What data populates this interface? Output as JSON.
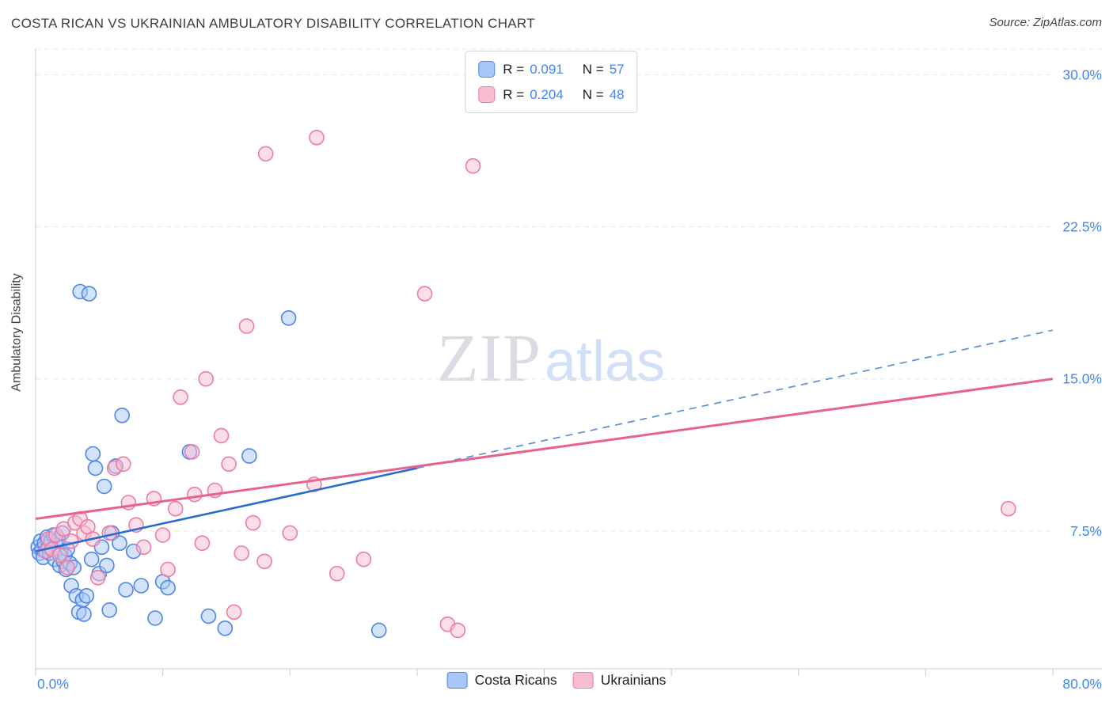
{
  "header": {
    "title": "COSTA RICAN VS UKRAINIAN AMBULATORY DISABILITY CORRELATION CHART",
    "source": "Source: ZipAtlas.com"
  },
  "watermark": {
    "part1": "ZIP",
    "part2": "atlas"
  },
  "legend_box": {
    "rows": [
      {
        "series": "Costa Ricans",
        "r_label": "R =",
        "r_value": "0.091",
        "n_label": "N =",
        "n_value": "57"
      },
      {
        "series": "Ukrainians",
        "r_label": "R =",
        "r_value": "0.204",
        "n_label": "N =",
        "n_value": "48"
      }
    ]
  },
  "bottom_legend": {
    "items": [
      {
        "label": "Costa Ricans"
      },
      {
        "label": "Ukrainians"
      }
    ]
  },
  "colors": {
    "axis_tick_label": "#4285f4",
    "gridline": "#e4e7eb",
    "title_text": "#3c4043",
    "costa_ricans_fill": "#a7c7f9",
    "costa_ricans_stroke": "#4c86e8",
    "costa_ricans_trend": "#2a6bd2",
    "ukrainians_fill": "#f8bdd2",
    "ukrainians_stroke": "#ef7ba3",
    "ukrainians_trend": "#e8638c"
  },
  "chart_data": {
    "type": "scatter",
    "title": "COSTA RICAN VS UKRAINIAN AMBULATORY DISABILITY CORRELATION CHART",
    "ylabel": "Ambulatory Disability",
    "xlim": [
      0,
      80
    ],
    "ylim": [
      0,
      31.3
    ],
    "x_unit": "%",
    "y_unit": "%",
    "xlabel_left": "0.0%",
    "xlabel_right": "80.0%",
    "xticks": [
      0,
      10,
      20,
      30,
      40,
      50,
      60,
      70,
      80
    ],
    "tick_color": "#4285f4",
    "grid": true,
    "legend_position": "top-center",
    "ygrid": [
      {
        "value": 7.5,
        "label": "7.5%"
      },
      {
        "value": 15,
        "label": "15.0%"
      },
      {
        "value": 22.5,
        "label": "22.5%"
      },
      {
        "value": 30,
        "label": "30.0%"
      }
    ],
    "series": [
      {
        "name": "Costa Ricans",
        "R": 0.091,
        "N": 57,
        "fill": "#a7c7f9",
        "stroke": "#4c86e8",
        "points": [
          [
            0.2,
            6.7
          ],
          [
            0.3,
            6.4
          ],
          [
            0.4,
            7.0
          ],
          [
            0.5,
            6.6
          ],
          [
            0.6,
            6.2
          ],
          [
            0.7,
            6.9
          ],
          [
            0.8,
            6.5
          ],
          [
            0.9,
            7.2
          ],
          [
            1.0,
            6.7
          ],
          [
            1.1,
            6.4
          ],
          [
            1.2,
            7.0
          ],
          [
            1.3,
            6.6
          ],
          [
            1.4,
            7.3
          ],
          [
            1.5,
            6.1
          ],
          [
            1.6,
            6.8
          ],
          [
            1.8,
            7.1
          ],
          [
            1.9,
            5.8
          ],
          [
            2.0,
            6.4
          ],
          [
            2.1,
            7.4
          ],
          [
            2.2,
            6.0
          ],
          [
            2.3,
            6.3
          ],
          [
            2.4,
            5.6
          ],
          [
            2.5,
            6.6
          ],
          [
            2.7,
            5.9
          ],
          [
            2.8,
            4.8
          ],
          [
            3.0,
            5.7
          ],
          [
            3.2,
            4.3
          ],
          [
            3.4,
            3.5
          ],
          [
            3.5,
            19.3
          ],
          [
            3.7,
            4.1
          ],
          [
            3.8,
            3.4
          ],
          [
            4.0,
            4.3
          ],
          [
            4.2,
            19.2
          ],
          [
            4.4,
            6.1
          ],
          [
            4.5,
            11.3
          ],
          [
            4.7,
            10.6
          ],
          [
            5.0,
            5.4
          ],
          [
            5.2,
            6.7
          ],
          [
            5.4,
            9.7
          ],
          [
            5.6,
            5.8
          ],
          [
            5.8,
            3.6
          ],
          [
            6.0,
            7.4
          ],
          [
            6.3,
            10.7
          ],
          [
            6.6,
            6.9
          ],
          [
            6.8,
            13.2
          ],
          [
            7.1,
            4.6
          ],
          [
            7.7,
            6.5
          ],
          [
            8.3,
            4.8
          ],
          [
            9.4,
            3.2
          ],
          [
            10.0,
            5.0
          ],
          [
            10.4,
            4.7
          ],
          [
            12.1,
            11.4
          ],
          [
            13.6,
            3.3
          ],
          [
            14.9,
            2.7
          ],
          [
            16.8,
            11.2
          ],
          [
            19.9,
            18.0
          ],
          [
            27.0,
            2.6
          ]
        ]
      },
      {
        "name": "Ukrainians",
        "R": 0.204,
        "N": 48,
        "fill": "#f8bdd2",
        "stroke": "#ef7ba3",
        "points": [
          [
            0.8,
            6.5
          ],
          [
            1.0,
            7.1
          ],
          [
            1.3,
            6.6
          ],
          [
            1.6,
            7.3
          ],
          [
            1.9,
            6.3
          ],
          [
            2.2,
            7.6
          ],
          [
            2.5,
            5.7
          ],
          [
            2.8,
            7.0
          ],
          [
            3.1,
            7.9
          ],
          [
            3.5,
            8.1
          ],
          [
            3.8,
            7.4
          ],
          [
            4.1,
            7.7
          ],
          [
            4.5,
            7.1
          ],
          [
            4.9,
            5.2
          ],
          [
            5.8,
            7.4
          ],
          [
            6.2,
            10.6
          ],
          [
            6.9,
            10.8
          ],
          [
            7.3,
            8.9
          ],
          [
            7.9,
            7.8
          ],
          [
            8.5,
            6.7
          ],
          [
            9.3,
            9.1
          ],
          [
            10.0,
            7.3
          ],
          [
            10.4,
            5.6
          ],
          [
            11.0,
            8.6
          ],
          [
            11.4,
            14.1
          ],
          [
            12.3,
            11.4
          ],
          [
            12.5,
            9.3
          ],
          [
            13.1,
            6.9
          ],
          [
            13.4,
            15.0
          ],
          [
            14.1,
            9.5
          ],
          [
            14.6,
            12.2
          ],
          [
            15.2,
            10.8
          ],
          [
            15.6,
            3.5
          ],
          [
            16.2,
            6.4
          ],
          [
            16.6,
            17.6
          ],
          [
            17.1,
            7.9
          ],
          [
            18.0,
            6.0
          ],
          [
            18.1,
            26.1
          ],
          [
            20.0,
            7.4
          ],
          [
            21.9,
            9.8
          ],
          [
            22.1,
            26.9
          ],
          [
            23.7,
            5.4
          ],
          [
            25.8,
            6.1
          ],
          [
            30.6,
            19.2
          ],
          [
            32.4,
            2.9
          ],
          [
            33.2,
            2.6
          ],
          [
            34.4,
            25.5
          ],
          [
            76.5,
            8.6
          ]
        ]
      }
    ],
    "trendlines": [
      {
        "series": "Costa Ricans",
        "color": "#2a6bd2",
        "width": 2.6,
        "solid": [
          [
            0,
            6.5
          ],
          [
            30,
            10.6
          ]
        ],
        "dashed": [
          [
            30,
            10.6
          ],
          [
            80,
            17.4
          ]
        ],
        "dashed_color": "#5b8fd6"
      },
      {
        "series": "Ukrainians",
        "color": "#e8638c",
        "width": 3,
        "solid": [
          [
            0,
            8.1
          ],
          [
            80,
            15.0
          ]
        ]
      }
    ]
  }
}
